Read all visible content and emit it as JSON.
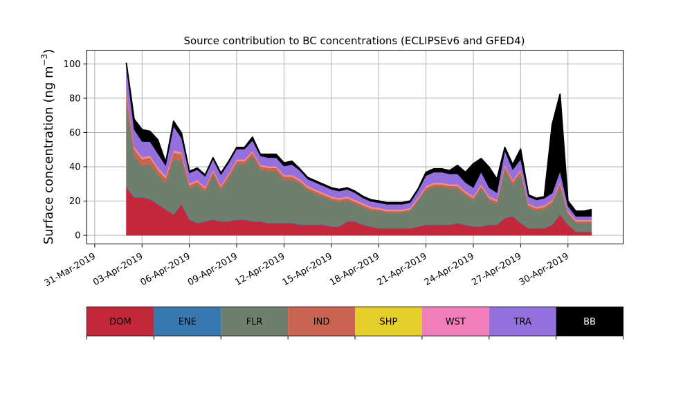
{
  "chart_data": {
    "type": "area",
    "stacked": true,
    "title": "Source contribution to BC concentrations (ECLIPSEv6 and GFED4)",
    "ylabel": "Surface concentration (ng m⁻³)",
    "ylabel_main": "Surface concentration (ng m",
    "ylabel_sup": "−3",
    "ylabel_close": ")",
    "xlabel": "",
    "x_axis": "date",
    "xlim": [
      "2019-03-30T12:00",
      "2019-05-03T12:00"
    ],
    "ylim": [
      -5,
      108
    ],
    "grid": true,
    "x_ticks": [
      "31-Mar-2019",
      "03-Apr-2019",
      "06-Apr-2019",
      "09-Apr-2019",
      "12-Apr-2019",
      "15-Apr-2019",
      "18-Apr-2019",
      "21-Apr-2019",
      "24-Apr-2019",
      "27-Apr-2019",
      "30-Apr-2019"
    ],
    "x_tick_dates": [
      "2019-03-31",
      "2019-04-03",
      "2019-04-06",
      "2019-04-09",
      "2019-04-12",
      "2019-04-15",
      "2019-04-18",
      "2019-04-21",
      "2019-04-24",
      "2019-04-27",
      "2019-04-30"
    ],
    "y_ticks": [
      0,
      20,
      40,
      60,
      80,
      100
    ],
    "x": [
      "2019-04-02T00:00",
      "2019-04-02T12:00",
      "2019-04-03T00:00",
      "2019-04-03T12:00",
      "2019-04-04T00:00",
      "2019-04-04T12:00",
      "2019-04-05T00:00",
      "2019-04-05T12:00",
      "2019-04-06T00:00",
      "2019-04-06T12:00",
      "2019-04-07T00:00",
      "2019-04-07T12:00",
      "2019-04-08T00:00",
      "2019-04-08T12:00",
      "2019-04-09T00:00",
      "2019-04-09T12:00",
      "2019-04-10T00:00",
      "2019-04-10T12:00",
      "2019-04-11T00:00",
      "2019-04-11T12:00",
      "2019-04-12T00:00",
      "2019-04-12T12:00",
      "2019-04-13T00:00",
      "2019-04-13T12:00",
      "2019-04-14T00:00",
      "2019-04-14T12:00",
      "2019-04-15T00:00",
      "2019-04-15T12:00",
      "2019-04-16T00:00",
      "2019-04-16T12:00",
      "2019-04-17T00:00",
      "2019-04-17T12:00",
      "2019-04-18T00:00",
      "2019-04-18T12:00",
      "2019-04-19T00:00",
      "2019-04-19T12:00",
      "2019-04-20T00:00",
      "2019-04-20T12:00",
      "2019-04-21T00:00",
      "2019-04-21T12:00",
      "2019-04-22T00:00",
      "2019-04-22T12:00",
      "2019-04-23T00:00",
      "2019-04-23T12:00",
      "2019-04-24T00:00",
      "2019-04-24T12:00",
      "2019-04-25T00:00",
      "2019-04-25T12:00",
      "2019-04-26T00:00",
      "2019-04-26T12:00",
      "2019-04-27T00:00",
      "2019-04-27T12:00",
      "2019-04-28T00:00",
      "2019-04-28T12:00",
      "2019-04-29T00:00",
      "2019-04-29T12:00",
      "2019-04-30T00:00",
      "2019-04-30T12:00",
      "2019-05-01T00:00",
      "2019-05-01T12:00"
    ],
    "series": [
      {
        "name": "DOM",
        "color": "#c3283a",
        "values": [
          28,
          22,
          22,
          21,
          18,
          15,
          12,
          18,
          9,
          7,
          8,
          9,
          8,
          8,
          9,
          9,
          8,
          8,
          7,
          7,
          7,
          7,
          6,
          6,
          6,
          6,
          5,
          5,
          8,
          8,
          6,
          5,
          4,
          4,
          4,
          4,
          4,
          5,
          6,
          6,
          6,
          6,
          7,
          6,
          5,
          5,
          6,
          6,
          10,
          11,
          7,
          4,
          4,
          4,
          6,
          12,
          6,
          2,
          2,
          2
        ]
      },
      {
        "name": "ENE",
        "color": "#3778b0",
        "values": [
          0.4,
          0.4,
          0.4,
          0.4,
          0.4,
          0.3,
          0.3,
          0.4,
          0.3,
          0.3,
          0.3,
          0.3,
          0.3,
          0.3,
          0.3,
          0.3,
          0.3,
          0.3,
          0.3,
          0.3,
          0.3,
          0.3,
          0.3,
          0.3,
          0.3,
          0.3,
          0.3,
          0.3,
          0.3,
          0.3,
          0.3,
          0.3,
          0.2,
          0.2,
          0.2,
          0.2,
          0.2,
          0.2,
          0.3,
          0.3,
          0.3,
          0.3,
          0.3,
          0.3,
          0.3,
          0.3,
          0.3,
          0.3,
          0.3,
          0.3,
          0.3,
          0.2,
          0.2,
          0.2,
          0.2,
          0.3,
          0.2,
          0.2,
          0.2,
          0.2
        ]
      },
      {
        "name": "FLR",
        "color": "#6e7f6e",
        "values": [
          48,
          24,
          18,
          20,
          17,
          15,
          32,
          25,
          18,
          22,
          17,
          26,
          18,
          25,
          32,
          32,
          38,
          30,
          30,
          30,
          25,
          25,
          24,
          20,
          18,
          16,
          15,
          14,
          12,
          10,
          10,
          9,
          10,
          9,
          9,
          9,
          10,
          15,
          20,
          22,
          22,
          21,
          20,
          17,
          15,
          22,
          14,
          12,
          28,
          18,
          28,
          12,
          10,
          11,
          12,
          16,
          6,
          5,
          5,
          5
        ]
      },
      {
        "name": "IND",
        "color": "#c96451",
        "values": [
          7,
          4,
          4,
          4,
          3,
          3,
          4,
          4,
          2,
          2,
          2,
          2,
          2,
          2,
          2,
          2,
          2,
          2,
          2,
          2,
          2,
          2,
          1.5,
          1.5,
          1.5,
          1.5,
          1.5,
          1.5,
          1.5,
          1.5,
          1.5,
          1.5,
          1,
          1,
          1,
          1,
          1,
          1,
          1.5,
          1.5,
          1.5,
          1.5,
          1.5,
          1.5,
          1.5,
          1.5,
          1.5,
          1.5,
          2,
          2,
          2,
          1.5,
          1.5,
          1.5,
          1.5,
          2,
          1,
          1,
          1,
          1
        ]
      },
      {
        "name": "SHP",
        "color": "#e6ce2a",
        "values": [
          0.3,
          0.3,
          0.3,
          0.3,
          0.3,
          0.3,
          0.3,
          0.3,
          0.2,
          0.2,
          0.2,
          0.2,
          0.2,
          0.2,
          0.2,
          0.2,
          0.2,
          0.2,
          0.2,
          0.2,
          0.2,
          0.2,
          0.2,
          0.2,
          0.2,
          0.2,
          0.2,
          0.2,
          0.2,
          0.2,
          0.2,
          0.2,
          0.2,
          0.2,
          0.2,
          0.2,
          0.2,
          0.2,
          0.2,
          0.2,
          0.2,
          0.2,
          0.2,
          0.2,
          0.2,
          0.2,
          0.2,
          0.2,
          0.2,
          0.2,
          0.2,
          0.2,
          0.2,
          0.2,
          0.2,
          0.2,
          0.2,
          0.2,
          0.2,
          0.2
        ]
      },
      {
        "name": "WST",
        "color": "#f07fbc",
        "values": [
          1,
          1,
          1,
          1,
          1,
          1,
          1,
          1,
          0.8,
          0.8,
          0.8,
          0.8,
          0.8,
          0.8,
          0.8,
          0.8,
          0.8,
          0.8,
          0.8,
          0.8,
          0.8,
          0.8,
          0.8,
          0.8,
          0.8,
          0.8,
          0.8,
          0.8,
          0.8,
          0.8,
          0.8,
          0.8,
          0.7,
          0.7,
          0.7,
          0.7,
          0.7,
          0.7,
          0.8,
          0.8,
          0.8,
          0.8,
          0.8,
          0.8,
          0.8,
          0.8,
          0.8,
          0.8,
          0.8,
          0.8,
          0.8,
          0.7,
          0.7,
          0.7,
          0.7,
          0.8,
          0.7,
          0.7,
          0.7,
          0.7
        ]
      },
      {
        "name": "TRA",
        "color": "#9370db",
        "values": [
          14,
          10,
          9,
          8,
          8,
          6,
          14,
          8,
          6,
          6,
          6,
          6,
          6,
          6,
          6,
          6,
          6,
          5,
          5,
          5,
          5,
          6,
          5,
          4,
          4,
          4,
          4,
          4,
          4,
          4,
          3,
          3,
          3,
          3,
          3,
          3,
          3,
          4,
          6,
          6,
          6,
          6,
          6,
          5,
          5,
          7,
          5,
          4,
          8,
          6,
          6,
          4,
          4,
          4,
          4,
          6,
          3,
          2,
          2,
          2
        ]
      },
      {
        "name": "BB",
        "color": "#000000",
        "values": [
          2,
          6,
          7,
          6,
          8,
          2,
          3,
          3,
          1,
          1,
          1,
          1,
          1,
          1,
          1,
          1,
          2,
          1,
          2,
          2,
          2,
          2,
          1,
          1,
          1,
          1,
          1,
          1,
          1,
          1,
          1,
          1,
          1,
          1,
          1,
          1,
          1,
          1,
          2,
          2,
          2,
          2,
          5,
          6,
          14,
          8,
          12,
          8,
          2,
          3,
          6,
          1,
          1,
          1,
          40,
          45,
          3,
          3,
          3,
          4
        ]
      }
    ],
    "legend_placement": "horizontal color bar below plot"
  }
}
